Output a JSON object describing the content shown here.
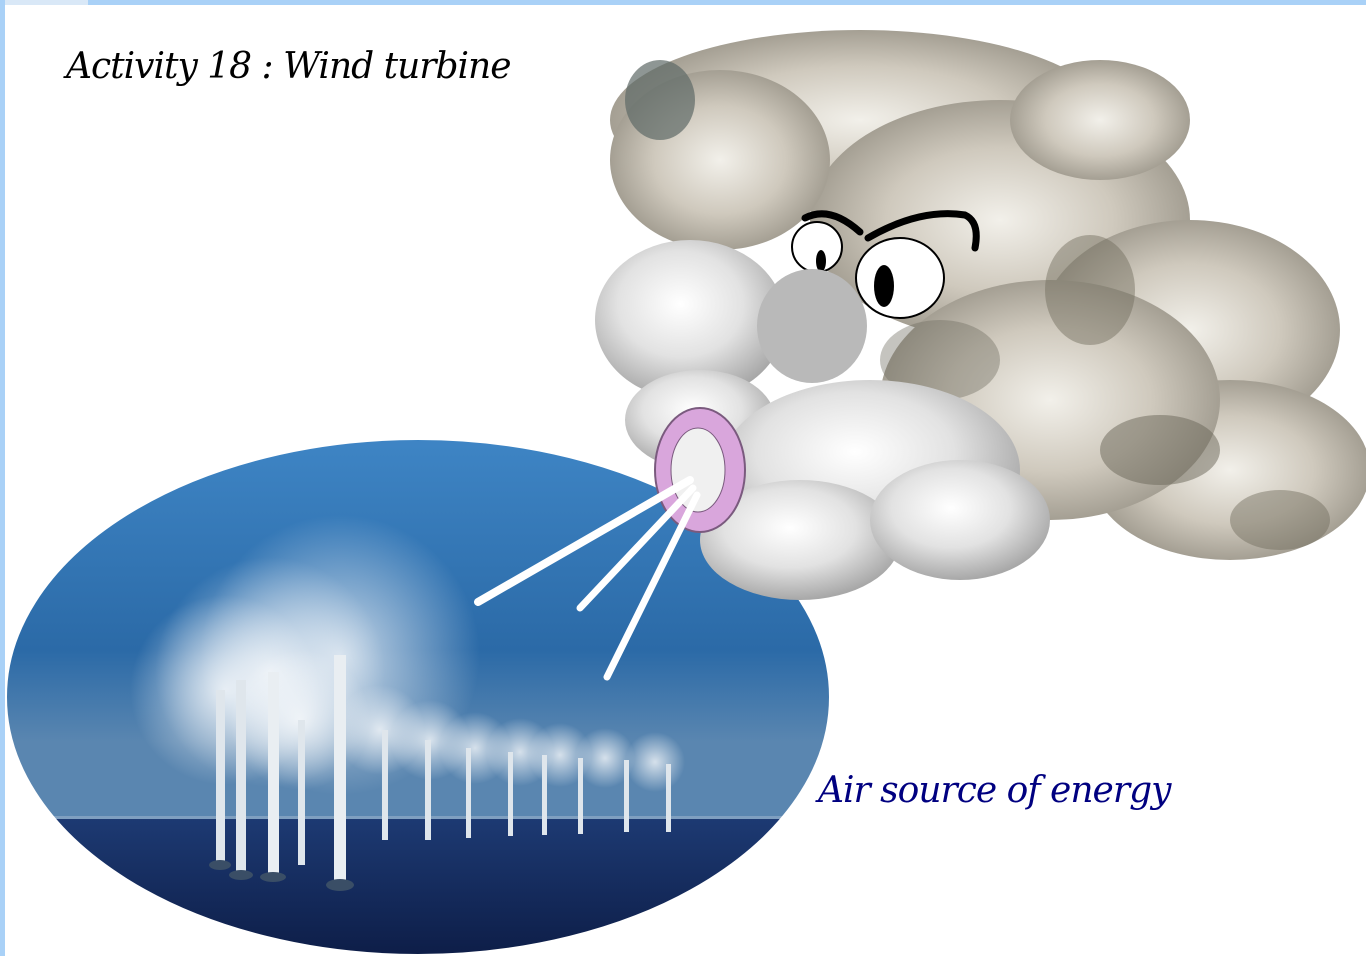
{
  "slide": {
    "title": "Activity 18 : Wind turbine",
    "caption": "Air source of energy"
  },
  "colors": {
    "frame": "#a9d1f7",
    "title": "#000000",
    "caption": "#000080",
    "sky": "#2a6fb0",
    "sea": "#14285a",
    "cloud": "#cfcfcf",
    "mouth": "#d9a6dc"
  },
  "illustration": {
    "turbines_icon": "wind-turbine-icon",
    "character_icon": "cloud-face-icon"
  }
}
